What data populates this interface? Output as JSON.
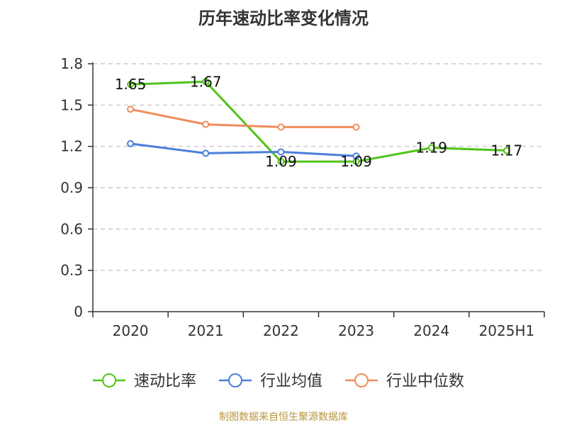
{
  "chart_data": {
    "type": "line",
    "title": "历年速动比率变化情况",
    "categories": [
      "2020",
      "2021",
      "2022",
      "2023",
      "2024",
      "2025H1"
    ],
    "ylim": [
      0,
      1.8
    ],
    "yticks": [
      "0",
      "0.3",
      "0.6",
      "0.9",
      "1.2",
      "1.5",
      "1.8"
    ],
    "grid": true,
    "legend_position": "bottom",
    "series": [
      {
        "name": "速动比率",
        "color": "#52c41a",
        "values": [
          1.65,
          1.67,
          1.09,
          1.09,
          1.19,
          1.17
        ],
        "labels": [
          "1.65",
          "1.67",
          "1.09",
          "1.09",
          "1.19",
          "1.17"
        ]
      },
      {
        "name": "行业均值",
        "color": "#4a7fdc",
        "values": [
          1.22,
          1.15,
          1.16,
          1.13,
          null,
          null
        ]
      },
      {
        "name": "行业中位数",
        "color": "#f08c5a",
        "values": [
          1.47,
          1.36,
          1.34,
          1.34,
          null,
          null
        ]
      }
    ]
  },
  "footer": {
    "source": "制图数据来自恒生聚源数据库"
  }
}
